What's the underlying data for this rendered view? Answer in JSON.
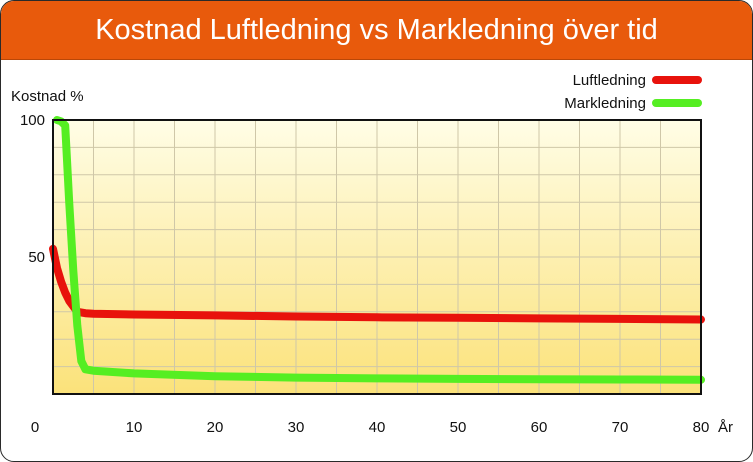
{
  "header": {
    "title": "Kostnad Luftledning vs Markledning över tid"
  },
  "colors": {
    "header_bg": "#e85a0c",
    "luftledning": "#e8120c",
    "markledning": "#55ee22",
    "plot_top": "#fffde6",
    "plot_bottom": "#fbe27a"
  },
  "chart_data": {
    "type": "line",
    "title": "Kostnad Luftledning vs Markledning över tid",
    "xlabel": "År",
    "ylabel": "Kostnad %",
    "xlim": [
      0,
      80
    ],
    "ylim": [
      0,
      100
    ],
    "x_ticks": [
      0,
      10,
      20,
      30,
      40,
      50,
      60,
      70,
      80
    ],
    "y_ticks": [
      50,
      100
    ],
    "grid": true,
    "legend_position": "top-right",
    "series": [
      {
        "name": "Luftledning",
        "color": "#e8120c",
        "x": [
          0,
          0.5,
          1,
          1.5,
          2,
          2.5,
          3,
          4,
          5,
          10,
          20,
          30,
          40,
          50,
          60,
          70,
          80
        ],
        "y": [
          53,
          46,
          41,
          37,
          34,
          32,
          30,
          29.5,
          29.3,
          29,
          28.7,
          28.3,
          28,
          27.8,
          27.6,
          27.4,
          27.2
        ]
      },
      {
        "name": "Markledning",
        "color": "#55ee22",
        "x": [
          0.5,
          1,
          1.5,
          2,
          2.5,
          3,
          3.5,
          4,
          5,
          10,
          20,
          30,
          40,
          50,
          60,
          70,
          80
        ],
        "y": [
          100,
          99.5,
          98,
          70,
          45,
          25,
          12,
          9,
          8.5,
          7.5,
          6.5,
          6,
          5.7,
          5.5,
          5.4,
          5.3,
          5.2
        ]
      }
    ]
  }
}
